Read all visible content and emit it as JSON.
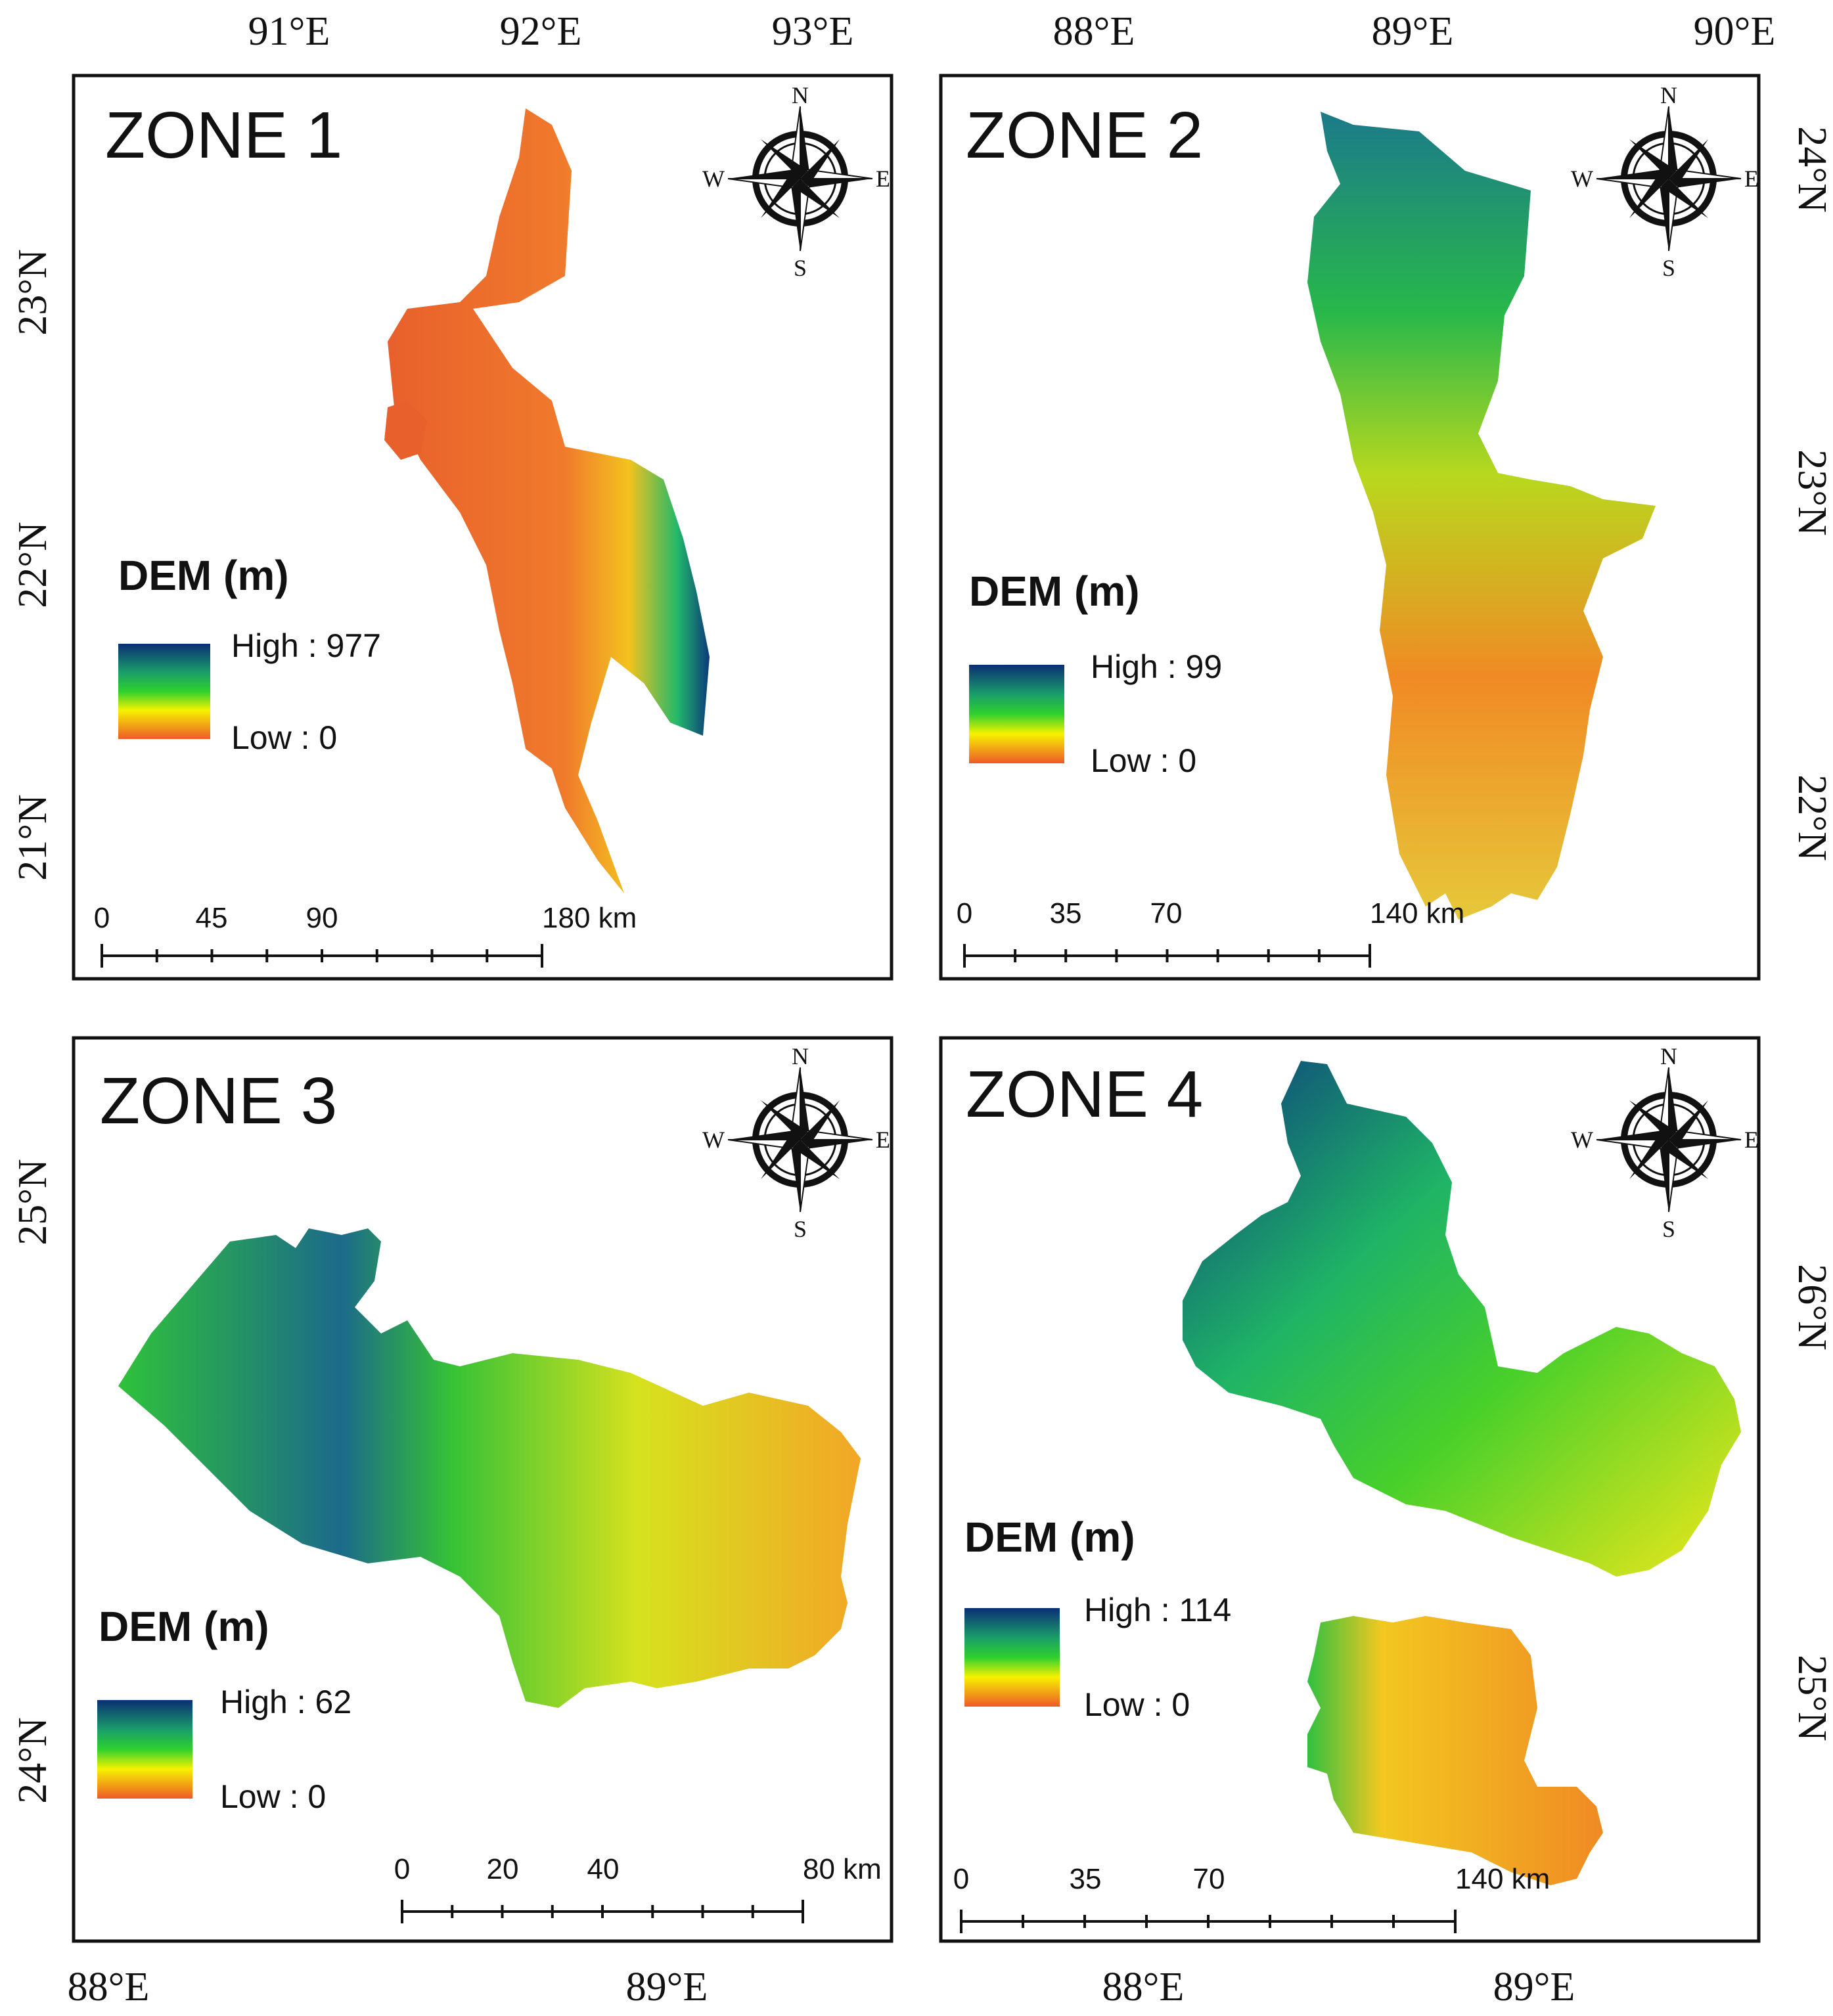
{
  "figure": {
    "panels": [
      {
        "title": "ZONE 1",
        "legend": {
          "title": "DEM (m)",
          "high": "High : 977",
          "low": "Low : 0"
        },
        "scale": {
          "labels": [
            "0",
            "45",
            "90",
            "180 km"
          ]
        },
        "top_lon_labels": [
          "91°E",
          "92°E",
          "93°E"
        ],
        "lat_labels": [
          "23°N",
          "22°N",
          "21°N"
        ],
        "compass": {
          "n": "N",
          "s": "S",
          "e": "E",
          "w": "W"
        }
      },
      {
        "title": "ZONE 2",
        "legend": {
          "title": "DEM (m)",
          "high": "High : 99",
          "low": "Low : 0"
        },
        "scale": {
          "labels": [
            "0",
            "35",
            "70",
            "140 km"
          ]
        },
        "top_lon_labels": [
          "88°E",
          "89°E",
          "90°E"
        ],
        "lat_labels": [
          "24°N",
          "23°N",
          "22°N"
        ],
        "compass": {
          "n": "N",
          "s": "S",
          "e": "E",
          "w": "W"
        }
      },
      {
        "title": "ZONE 3",
        "legend": {
          "title": "DEM (m)",
          "high": "High : 62",
          "low": "Low : 0"
        },
        "scale": {
          "labels": [
            "0",
            "20",
            "40",
            "80 km"
          ]
        },
        "bottom_lon_labels": [
          "88°E",
          "89°E"
        ],
        "lat_labels": [
          "25°N",
          "24°N"
        ],
        "compass": {
          "n": "N",
          "s": "S",
          "e": "E",
          "w": "W"
        }
      },
      {
        "title": "ZONE 4",
        "legend": {
          "title": "DEM (m)",
          "high": "High : 114",
          "low": "Low : 0"
        },
        "scale": {
          "labels": [
            "0",
            "35",
            "70",
            "140 km"
          ]
        },
        "bottom_lon_labels": [
          "88°E",
          "89°E"
        ],
        "lat_labels": [
          "26°N",
          "25°N"
        ],
        "compass": {
          "n": "N",
          "s": "S",
          "e": "E",
          "w": "W"
        }
      }
    ],
    "colors": {
      "dem_high": "#08306b",
      "dem_mid_high": "#1a9850",
      "dem_mid": "#00c800",
      "dem_mid_low": "#ffff00",
      "dem_low": "#e8602c",
      "frame": "#111111"
    }
  }
}
